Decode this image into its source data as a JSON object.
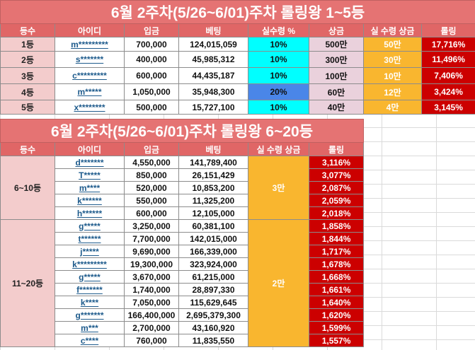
{
  "table1": {
    "title": "6월 2주차(5/26~6/01)주차 롤링왕 1~5등",
    "headers": [
      "등수",
      "아이디",
      "입금",
      "베팅",
      "실수령 %",
      "상금",
      "실 수령 상금",
      "롤링"
    ],
    "rows": [
      {
        "rank": "1등",
        "id": "m*********",
        "deposit": "700,000",
        "bet": "124,015,059",
        "rate": "10%",
        "prize": "500만",
        "real": "50만",
        "rolling": "17,716%"
      },
      {
        "rank": "2등",
        "id": "s*******",
        "deposit": "400,000",
        "bet": "45,985,312",
        "rate": "10%",
        "prize": "300만",
        "real": "30만",
        "rolling": "11,496%"
      },
      {
        "rank": "3등",
        "id": "c*********",
        "deposit": "600,000",
        "bet": "44,435,187",
        "rate": "10%",
        "prize": "100만",
        "real": "10만",
        "rolling": "7,406%"
      },
      {
        "rank": "4등",
        "id": "m*****",
        "deposit": "1,050,000",
        "bet": "35,948,300",
        "rate": "20%",
        "prize": "60만",
        "real": "12만",
        "rolling": "3,424%"
      },
      {
        "rank": "5등",
        "id": "x********",
        "deposit": "500,000",
        "bet": "15,727,100",
        "rate": "10%",
        "prize": "40만",
        "real": "4만",
        "rolling": "3,145%"
      }
    ]
  },
  "table2": {
    "title": "6월 2주차(5/26~6/01)주차 롤링왕 6~20등",
    "headers": [
      "등수",
      "아이디",
      "입금",
      "베팅",
      "실 수령 상금",
      "롤링"
    ],
    "group1": {
      "label": "6~10등",
      "real": "3만"
    },
    "group2": {
      "label": "11~20등",
      "real": "2만"
    },
    "rows": [
      {
        "id": "d*******",
        "deposit": "4,550,000",
        "bet": "141,789,400",
        "rolling": "3,116%"
      },
      {
        "id": "T*****",
        "deposit": "850,000",
        "bet": "26,151,429",
        "rolling": "3,077%"
      },
      {
        "id": "m****",
        "deposit": "520,000",
        "bet": "10,853,200",
        "rolling": "2,087%"
      },
      {
        "id": "k******",
        "deposit": "550,000",
        "bet": "11,325,200",
        "rolling": "2,059%"
      },
      {
        "id": "h******",
        "deposit": "600,000",
        "bet": "12,105,000",
        "rolling": "2,018%"
      },
      {
        "id": "g*****",
        "deposit": "3,250,000",
        "bet": "60,381,100",
        "rolling": "1,858%"
      },
      {
        "id": "t******",
        "deposit": "7,700,000",
        "bet": "142,015,000",
        "rolling": "1,844%"
      },
      {
        "id": "j*****",
        "deposit": "9,690,000",
        "bet": "166,339,000",
        "rolling": "1,717%"
      },
      {
        "id": "k*********",
        "deposit": "19,300,000",
        "bet": "323,924,000",
        "rolling": "1,678%"
      },
      {
        "id": "g*****",
        "deposit": "3,670,000",
        "bet": "61,215,000",
        "rolling": "1,668%"
      },
      {
        "id": "f*******",
        "deposit": "1,740,000",
        "bet": "28,897,330",
        "rolling": "1,661%"
      },
      {
        "id": "k****",
        "deposit": "7,050,000",
        "bet": "115,629,645",
        "rolling": "1,640%"
      },
      {
        "id": "g*******",
        "deposit": "166,400,000",
        "bet": "2,695,379,300",
        "rolling": "1,620%"
      },
      {
        "id": "m***",
        "deposit": "2,700,000",
        "bet": "43,160,920",
        "rolling": "1,599%"
      },
      {
        "id": "c****",
        "deposit": "760,000",
        "bet": "11,835,550",
        "rolling": "1,557%"
      }
    ]
  }
}
